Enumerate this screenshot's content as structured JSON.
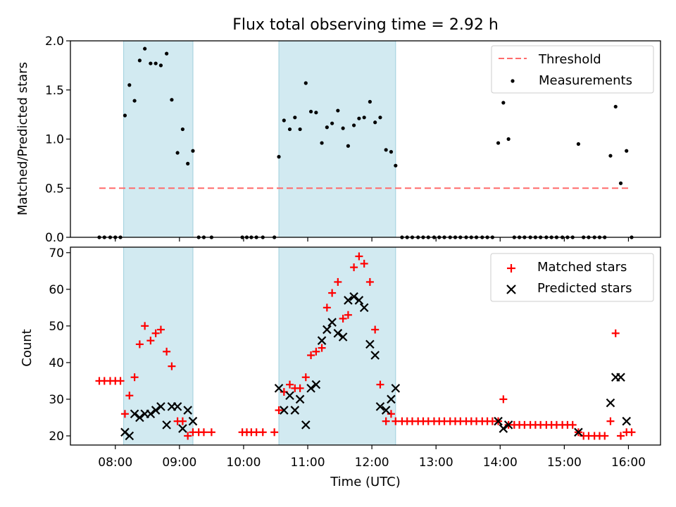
{
  "chart_data": [
    {
      "type": "scatter",
      "title": "Flux total observing time = 2.92 h",
      "xlabel": "",
      "ylabel": "Matched/Predicted stars",
      "xlim": [
        7.3,
        16.5
      ],
      "ylim": [
        0,
        2.0
      ],
      "yticks": [
        0,
        0.5,
        1.0,
        1.5,
        2.0
      ],
      "ytick_labels": [
        "0.0",
        "0.5",
        "1.0",
        "1.5",
        "2.0"
      ],
      "shaded_intervals": [
        [
          8.13,
          9.21
        ],
        [
          10.55,
          12.37
        ]
      ],
      "threshold": {
        "label": "Threshold",
        "value": 0.5,
        "x_range": [
          7.75,
          16.0
        ],
        "color": "#ff6b6b"
      },
      "legend": [
        "Threshold",
        "Measurements"
      ],
      "legend_position": "top-right",
      "series": [
        {
          "name": "Measurements",
          "marker": "dot",
          "color": "#000000",
          "x": [
            7.75,
            7.83,
            7.92,
            8.0,
            8.08,
            8.15,
            8.22,
            8.3,
            8.38,
            8.46,
            8.55,
            8.63,
            8.71,
            8.8,
            8.88,
            8.97,
            9.05,
            9.13,
            9.21,
            9.3,
            9.38,
            9.5,
            9.98,
            10.05,
            10.12,
            10.2,
            10.3,
            10.48,
            10.55,
            10.63,
            10.72,
            10.8,
            10.88,
            10.97,
            11.05,
            11.13,
            11.22,
            11.3,
            11.38,
            11.47,
            11.55,
            11.63,
            11.72,
            11.8,
            11.88,
            11.97,
            12.05,
            12.13,
            12.22,
            12.3,
            12.37,
            12.47,
            12.55,
            12.63,
            12.72,
            12.8,
            12.88,
            12.97,
            13.05,
            13.13,
            13.22,
            13.3,
            13.38,
            13.47,
            13.55,
            13.63,
            13.72,
            13.8,
            13.88,
            13.97,
            14.05,
            14.13,
            14.22,
            14.3,
            14.38,
            14.47,
            14.55,
            14.63,
            14.72,
            14.8,
            14.88,
            14.97,
            15.05,
            15.13,
            15.22,
            15.3,
            15.38,
            15.47,
            15.55,
            15.63,
            15.72,
            15.8,
            15.88,
            15.97,
            16.05
          ],
          "y": [
            0,
            0,
            0,
            0,
            0,
            1.24,
            1.55,
            1.39,
            1.8,
            1.92,
            1.77,
            1.77,
            1.75,
            1.87,
            1.4,
            0.86,
            1.1,
            0.75,
            0.88,
            0,
            0,
            0,
            0,
            0,
            0,
            0,
            0,
            0,
            0.82,
            1.19,
            1.1,
            1.22,
            1.1,
            1.57,
            1.28,
            1.27,
            0.96,
            1.12,
            1.16,
            1.29,
            1.11,
            0.93,
            1.14,
            1.21,
            1.22,
            1.38,
            1.17,
            1.22,
            0.89,
            0.87,
            0.73,
            0,
            0,
            0,
            0,
            0,
            0,
            0,
            0,
            0,
            0,
            0,
            0,
            0,
            0,
            0,
            0,
            0,
            0,
            0.96,
            1.37,
            1.0,
            0,
            0,
            0,
            0,
            0,
            0,
            0,
            0,
            0,
            0,
            0,
            0,
            0.95,
            0,
            0,
            0,
            0,
            0,
            0.83,
            1.33,
            0.55,
            0.88,
            0
          ]
        }
      ]
    },
    {
      "type": "scatter",
      "title": "",
      "xlabel": "Time (UTC)",
      "ylabel": "Count",
      "xlim": [
        7.3,
        16.5
      ],
      "ylim": [
        17.5,
        71.5
      ],
      "yticks": [
        20,
        30,
        40,
        50,
        60,
        70
      ],
      "ytick_labels": [
        "20",
        "30",
        "40",
        "50",
        "60",
        "70"
      ],
      "xticks": [
        8,
        9,
        10,
        11,
        12,
        13,
        14,
        15,
        16
      ],
      "xtick_labels": [
        "08:00",
        "09:00",
        "10:00",
        "11:00",
        "12:00",
        "13:00",
        "14:00",
        "15:00",
        "16:00"
      ],
      "shaded_intervals": [
        [
          8.13,
          9.21
        ],
        [
          10.55,
          12.37
        ]
      ],
      "legend": [
        "Matched stars",
        "Predicted stars"
      ],
      "legend_position": "top-right",
      "series": [
        {
          "name": "Matched stars",
          "marker": "plus",
          "color": "#ff0000",
          "x": [
            7.75,
            7.83,
            7.92,
            8.0,
            8.08,
            8.15,
            8.22,
            8.3,
            8.38,
            8.46,
            8.55,
            8.63,
            8.71,
            8.8,
            8.88,
            8.97,
            9.05,
            9.13,
            9.21,
            9.3,
            9.38,
            9.5,
            9.98,
            10.05,
            10.12,
            10.2,
            10.3,
            10.48,
            10.55,
            10.63,
            10.72,
            10.8,
            10.88,
            10.97,
            11.05,
            11.13,
            11.22,
            11.3,
            11.38,
            11.47,
            11.55,
            11.63,
            11.72,
            11.8,
            11.88,
            11.97,
            12.05,
            12.13,
            12.22,
            12.3,
            12.37,
            12.47,
            12.55,
            12.63,
            12.72,
            12.8,
            12.88,
            12.97,
            13.05,
            13.13,
            13.22,
            13.3,
            13.38,
            13.47,
            13.55,
            13.63,
            13.72,
            13.8,
            13.88,
            13.97,
            14.05,
            14.13,
            14.22,
            14.3,
            14.38,
            14.47,
            14.55,
            14.63,
            14.72,
            14.8,
            14.88,
            14.97,
            15.05,
            15.13,
            15.22,
            15.3,
            15.38,
            15.47,
            15.55,
            15.63,
            15.72,
            15.8,
            15.88,
            15.97,
            16.05
          ],
          "y": [
            35,
            35,
            35,
            35,
            35,
            26,
            31,
            36,
            45,
            50,
            46,
            48,
            49,
            43,
            39,
            24,
            24,
            20,
            21,
            21,
            21,
            21,
            21,
            21,
            21,
            21,
            21,
            21,
            27,
            32,
            34,
            33,
            33,
            36,
            42,
            43,
            44,
            55,
            59,
            62,
            52,
            53,
            66,
            69,
            67,
            62,
            49,
            34,
            24,
            26,
            24,
            24,
            24,
            24,
            24,
            24,
            24,
            24,
            24,
            24,
            24,
            24,
            24,
            24,
            24,
            24,
            24,
            24,
            24,
            24,
            30,
            23,
            23,
            23,
            23,
            23,
            23,
            23,
            23,
            23,
            23,
            23,
            23,
            23,
            21,
            20,
            20,
            20,
            20,
            20,
            24,
            48,
            20,
            21,
            21
          ]
        },
        {
          "name": "Predicted stars",
          "marker": "x",
          "color": "#000000",
          "x": [
            8.15,
            8.22,
            8.3,
            8.38,
            8.46,
            8.55,
            8.63,
            8.71,
            8.8,
            8.88,
            8.97,
            9.05,
            9.13,
            9.21,
            10.55,
            10.63,
            10.72,
            10.8,
            10.88,
            10.97,
            11.05,
            11.13,
            11.22,
            11.3,
            11.38,
            11.47,
            11.55,
            11.63,
            11.72,
            11.8,
            11.88,
            11.97,
            12.05,
            12.13,
            12.22,
            12.3,
            12.37,
            13.97,
            14.05,
            14.13,
            15.22,
            15.72,
            15.8,
            15.88,
            15.97
          ],
          "y": [
            21,
            20,
            26,
            25,
            26,
            26,
            27,
            28,
            23,
            28,
            28,
            22,
            27,
            24,
            33,
            27,
            31,
            27,
            30,
            23,
            33,
            34,
            46,
            49,
            51,
            48,
            47,
            57,
            58,
            57,
            55,
            45,
            42,
            28,
            27,
            30,
            33,
            24,
            22,
            23,
            21,
            29,
            36,
            36,
            24
          ]
        }
      ]
    }
  ]
}
